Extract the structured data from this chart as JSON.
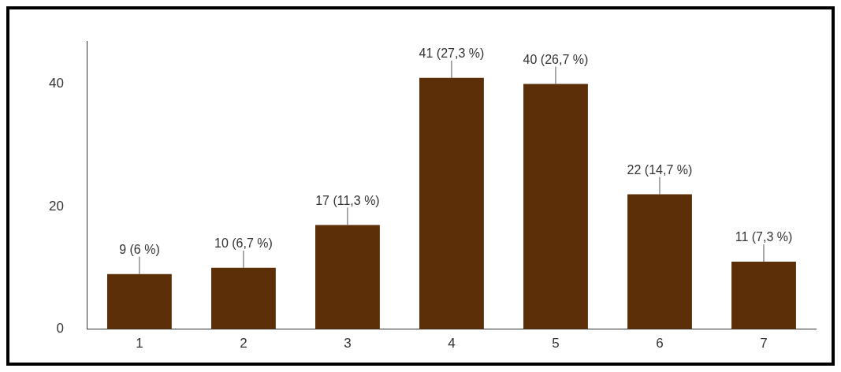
{
  "chart_data": {
    "type": "bar",
    "categories": [
      "1",
      "2",
      "3",
      "4",
      "5",
      "6",
      "7"
    ],
    "values": [
      9,
      10,
      17,
      41,
      40,
      22,
      11
    ],
    "color": "#5c2f08",
    "value_labels": [
      "9 (6 %)",
      "10 (6,7 %)",
      "17 (11,3 %)",
      "41 (27,3 %)",
      "40 (26,7 %)",
      "22 (14,7 %)",
      "11 (7,3 %)"
    ],
    "ylim": [
      0,
      47
    ],
    "yticks": [
      0,
      20,
      40
    ],
    "grid": false,
    "legend": false
  }
}
